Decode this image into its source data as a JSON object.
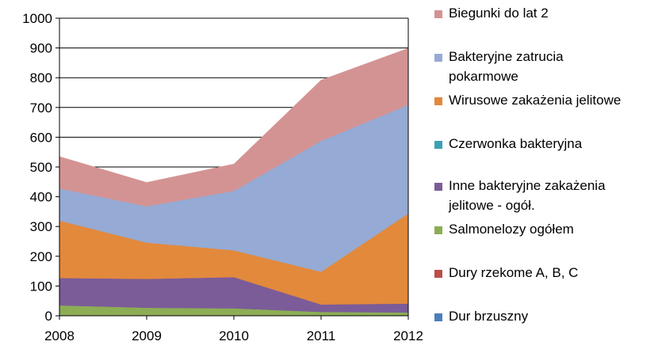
{
  "chart_data": {
    "type": "area",
    "stacked": true,
    "x": [
      "2008",
      "2009",
      "2010",
      "2011",
      "2012"
    ],
    "ylim": [
      0,
      1000
    ],
    "yticks": [
      "0",
      "100",
      "200",
      "300",
      "400",
      "500",
      "600",
      "700",
      "800",
      "900",
      "1000"
    ],
    "grid": true,
    "legend_position": "right",
    "series": [
      {
        "name": "Dur brzuszny",
        "color": "#4a7ebb",
        "values": [
          0,
          0,
          0,
          0,
          0
        ]
      },
      {
        "name": "Dury rzekome A, B, C",
        "color": "#be4b48",
        "values": [
          0,
          0,
          0,
          0,
          0
        ]
      },
      {
        "name": "Salmonelozy ogółem",
        "color": "#8cad55",
        "values": [
          35,
          27,
          25,
          13,
          11
        ]
      },
      {
        "name": "Inne bakteryjne zakażenia jelitowe - ogół.",
        "color": "#7b5c98",
        "values": [
          92,
          97,
          105,
          25,
          30
        ]
      },
      {
        "name": "Czerwonka bakteryjna",
        "color": "#3ca0b4",
        "values": [
          0,
          0,
          0,
          0,
          0
        ]
      },
      {
        "name": "Wirusowe zakażenia jelitowe",
        "color": "#e2893c",
        "values": [
          193,
          122,
          90,
          110,
          303
        ]
      },
      {
        "name": "Bakteryjne zatrucia pokarmowe",
        "color": "#95aad4",
        "values": [
          108,
          122,
          200,
          440,
          365
        ]
      },
      {
        "name": "Biegunki do lat 2",
        "color": "#d49393",
        "values": [
          107,
          80,
          90,
          204,
          190
        ]
      }
    ]
  }
}
